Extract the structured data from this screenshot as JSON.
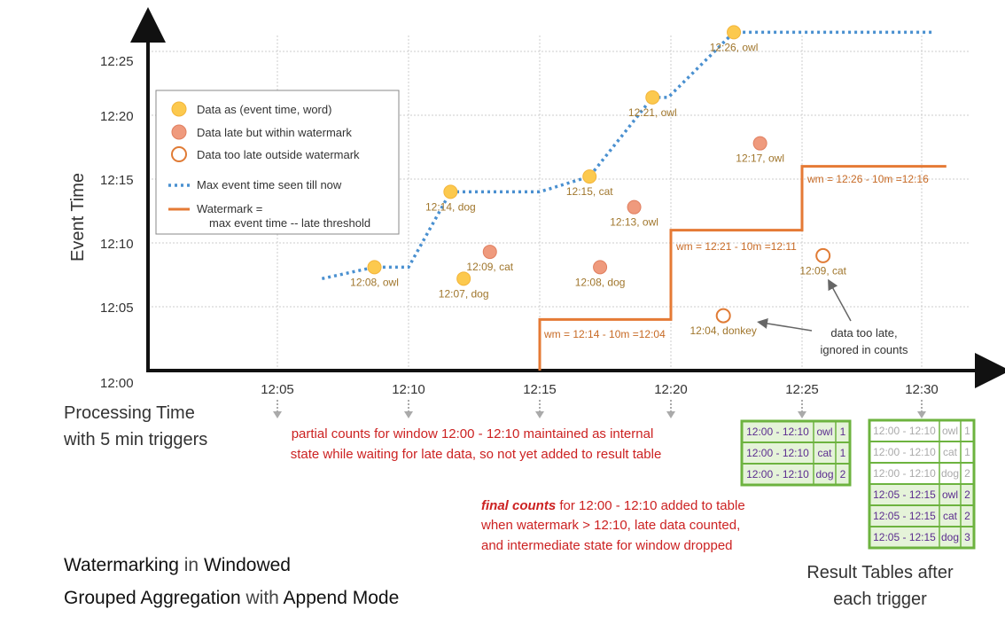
{
  "y_axis": {
    "label": "Event Time",
    "ticks": [
      "12:00",
      "12:05",
      "12:10",
      "12:15",
      "12:20",
      "12:25"
    ]
  },
  "x_axis": {
    "ticks": [
      "12:05",
      "12:10",
      "12:15",
      "12:20",
      "12:25",
      "12:30"
    ]
  },
  "processing_label": [
    "Processing Time",
    "with 5 min triggers"
  ],
  "legend": {
    "on_time": "Data as (event time, word)",
    "late_within": "Data late but within watermark",
    "too_late": "Data too late outside watermark",
    "max_event": "Max event time seen till now",
    "watermark_1": "Watermark =",
    "watermark_2": "max event time -- late threshold"
  },
  "colors": {
    "on_time": "#fcc94e",
    "late_within": "#ef9a7d",
    "too_late_stroke": "#e07b35",
    "max_event_line": "#4a90d0",
    "watermark_line": "#e57a35",
    "note_red": "#cc2222",
    "table_border": "#6db33f",
    "table_header_bg": "#e5f3d9"
  },
  "points": [
    {
      "label": "12:07, dog",
      "type": "on_time",
      "pt": 12.1,
      "et": 7.2
    },
    {
      "label": "12:08, owl",
      "type": "on_time",
      "pt": 8.7,
      "et": 8.1
    },
    {
      "label": "12:14, dog",
      "type": "on_time",
      "pt": 11.6,
      "et": 14.0
    },
    {
      "label": "12:09, cat",
      "type": "late_within",
      "pt": 13.1,
      "et": 9.3
    },
    {
      "label": "12:15, cat",
      "type": "on_time",
      "pt": 16.9,
      "et": 15.2
    },
    {
      "label": "12:08, dog",
      "type": "late_within",
      "pt": 17.3,
      "et": 8.1
    },
    {
      "label": "12:13, owl",
      "type": "late_within",
      "pt": 18.6,
      "et": 12.8
    },
    {
      "label": "12:21, owl",
      "type": "on_time",
      "pt": 19.3,
      "et": 21.4
    },
    {
      "label": "12:04, donkey",
      "type": "too_late",
      "pt": 22.0,
      "et": 4.3
    },
    {
      "label": "12:26, owl",
      "type": "on_time",
      "pt": 22.4,
      "et": 26.5
    },
    {
      "label": "12:17, owl",
      "type": "late_within",
      "pt": 23.4,
      "et": 17.8
    },
    {
      "label": "12:09, cat",
      "type": "too_late",
      "pt": 25.8,
      "et": 9.0
    }
  ],
  "max_event_line": [
    [
      6.7,
      7.2
    ],
    [
      8.7,
      8.1
    ],
    [
      10.0,
      8.1
    ],
    [
      11.6,
      14.0
    ],
    [
      15.0,
      14.0
    ],
    [
      16.9,
      15.2
    ],
    [
      19.3,
      21.4
    ],
    [
      19.9,
      21.4
    ],
    [
      22.4,
      26.5
    ],
    [
      30.0,
      26.5
    ]
  ],
  "watermark_line": [
    [
      15.0,
      0
    ],
    [
      15.0,
      4.0
    ],
    [
      20.0,
      4.0
    ],
    [
      20.0,
      11.0
    ],
    [
      25.0,
      11.0
    ],
    [
      25.0,
      16.0
    ],
    [
      30.5,
      16.0
    ]
  ],
  "watermark_labels": [
    "wm = 12:14 - 10m =12:04",
    "wm = 12:21 - 10m =12:11",
    "wm = 12:26 - 10m =12:16"
  ],
  "notes": {
    "partial_1": "partial counts for window 12:00 - 12:10 maintained as internal",
    "partial_2": "state while waiting for late data, so not yet added  to result table",
    "final_em": "final counts",
    "final_1": " for 12:00 - 12:10 added to table",
    "final_2": "when watermark > 12:10, late data counted,",
    "final_3": "and intermediate state for window dropped",
    "too_late_1": "data too late,",
    "too_late_2": "ignored in counts"
  },
  "title": {
    "l1a": "Watermarking",
    "l1b": " in ",
    "l1c": "Windowed",
    "l2a": "Grouped Aggregation",
    "l2b": " with ",
    "l2c": "Append Mode"
  },
  "result_caption": [
    "Result Tables after",
    "each trigger"
  ],
  "table_1225": [
    {
      "window": "12:00 - 12:10",
      "word": "owl",
      "count": "1"
    },
    {
      "window": "12:00 - 12:10",
      "word": "cat",
      "count": "1"
    },
    {
      "window": "12:00 - 12:10",
      "word": "dog",
      "count": "2"
    }
  ],
  "table_1230": [
    {
      "window": "12:00 - 12:10",
      "word": "owl",
      "count": "1",
      "faded": true
    },
    {
      "window": "12:00 - 12:10",
      "word": "cat",
      "count": "1",
      "faded": true
    },
    {
      "window": "12:00 - 12:10",
      "word": "dog",
      "count": "2",
      "faded": true
    },
    {
      "window": "12:05 - 12:15",
      "word": "owl",
      "count": "2",
      "faded": false
    },
    {
      "window": "12:05 - 12:15",
      "word": "cat",
      "count": "2",
      "faded": false
    },
    {
      "window": "12:05 - 12:15",
      "word": "dog",
      "count": "3",
      "faded": false
    }
  ]
}
